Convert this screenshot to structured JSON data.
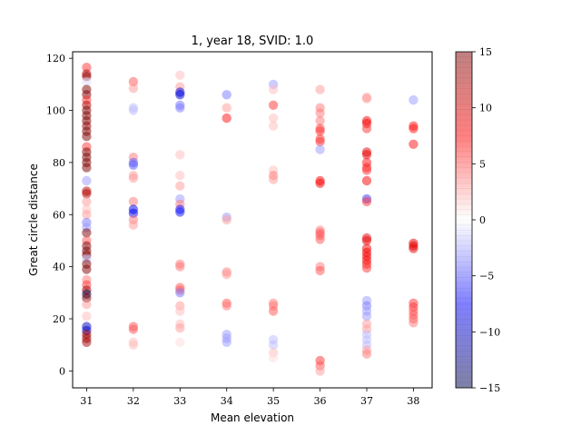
{
  "chart_data": {
    "type": "scatter",
    "title": "1, year 18, SVID: 1.0",
    "xlabel": "Mean elevation",
    "ylabel": "Great circle distance",
    "xlim": [
      30.7,
      38.4
    ],
    "ylim": [
      -6.5,
      122.5
    ],
    "xticks": [
      "31",
      "32",
      "33",
      "34",
      "35",
      "36",
      "37",
      "38"
    ],
    "yticks": [
      "0",
      "20",
      "40",
      "60",
      "80",
      "100",
      "120"
    ],
    "colorbar": {
      "colormap": "seismic",
      "range": [
        -15,
        15
      ],
      "alpha": 0.5,
      "ticks": [
        "15",
        "10",
        "5",
        "0",
        "−5",
        "−10",
        "−15"
      ]
    },
    "grid": false,
    "marker_alpha": 0.5,
    "points": [
      {
        "x": 31,
        "y": 116.5,
        "c": 6
      },
      {
        "x": 31,
        "y": 114,
        "c": 12
      },
      {
        "x": 31,
        "y": 113,
        "c": 14
      },
      {
        "x": 31,
        "y": 111,
        "c": -1
      },
      {
        "x": 31,
        "y": 108,
        "c": 15
      },
      {
        "x": 31,
        "y": 106,
        "c": 15
      },
      {
        "x": 31,
        "y": 104,
        "c": 6
      },
      {
        "x": 31,
        "y": 102,
        "c": 12
      },
      {
        "x": 31,
        "y": 100,
        "c": 15
      },
      {
        "x": 31,
        "y": 98,
        "c": 15
      },
      {
        "x": 31,
        "y": 96,
        "c": 15
      },
      {
        "x": 31,
        "y": 94,
        "c": 14
      },
      {
        "x": 31,
        "y": 92,
        "c": 15
      },
      {
        "x": 31,
        "y": 90,
        "c": 15
      },
      {
        "x": 31,
        "y": 86,
        "c": 6
      },
      {
        "x": 31,
        "y": 84,
        "c": 15
      },
      {
        "x": 31,
        "y": 82,
        "c": 15
      },
      {
        "x": 31,
        "y": 80,
        "c": 15
      },
      {
        "x": 31,
        "y": 78,
        "c": 15
      },
      {
        "x": 31,
        "y": 73,
        "c": -3
      },
      {
        "x": 31,
        "y": 69,
        "c": 12
      },
      {
        "x": 31,
        "y": 68,
        "c": 12
      },
      {
        "x": 31,
        "y": 65,
        "c": 3
      },
      {
        "x": 31,
        "y": 62,
        "c": 2
      },
      {
        "x": 31,
        "y": 60,
        "c": 3
      },
      {
        "x": 31,
        "y": 57,
        "c": -4
      },
      {
        "x": 31,
        "y": 55,
        "c": -3
      },
      {
        "x": 31,
        "y": 53,
        "c": 15
      },
      {
        "x": 31,
        "y": 50,
        "c": 5
      },
      {
        "x": 31,
        "y": 48,
        "c": 15
      },
      {
        "x": 31,
        "y": 46,
        "c": 15
      },
      {
        "x": 31,
        "y": 44.5,
        "c": 15
      },
      {
        "x": 31,
        "y": 43,
        "c": -2
      },
      {
        "x": 31,
        "y": 41,
        "c": 15
      },
      {
        "x": 31,
        "y": 39,
        "c": 15
      },
      {
        "x": 31,
        "y": 35,
        "c": 4
      },
      {
        "x": 31,
        "y": 33,
        "c": 6
      },
      {
        "x": 31,
        "y": 31,
        "c": 13
      },
      {
        "x": 31,
        "y": 29.5,
        "c": -15
      },
      {
        "x": 31,
        "y": 28,
        "c": 15
      },
      {
        "x": 31,
        "y": 25.5,
        "c": 3
      },
      {
        "x": 31,
        "y": 21,
        "c": 2
      },
      {
        "x": 31,
        "y": 17,
        "c": -10
      },
      {
        "x": 31,
        "y": 15.5,
        "c": -10
      },
      {
        "x": 31,
        "y": 14,
        "c": 13
      },
      {
        "x": 31,
        "y": 12.5,
        "c": 13
      },
      {
        "x": 31,
        "y": 11,
        "c": 13
      },
      {
        "x": 32,
        "y": 111,
        "c": 5
      },
      {
        "x": 32,
        "y": 108.5,
        "c": 3
      },
      {
        "x": 32,
        "y": 101,
        "c": -2
      },
      {
        "x": 32,
        "y": 100,
        "c": -2
      },
      {
        "x": 32,
        "y": 82,
        "c": 4
      },
      {
        "x": 32,
        "y": 80,
        "c": -5
      },
      {
        "x": 32,
        "y": 79,
        "c": -5
      },
      {
        "x": 32,
        "y": 75,
        "c": 3
      },
      {
        "x": 32,
        "y": 74,
        "c": 3
      },
      {
        "x": 32,
        "y": 65,
        "c": 4
      },
      {
        "x": 32,
        "y": 62,
        "c": -8
      },
      {
        "x": 32,
        "y": 60.5,
        "c": -8
      },
      {
        "x": 32,
        "y": 58,
        "c": 4
      },
      {
        "x": 32,
        "y": 56,
        "c": 3
      },
      {
        "x": 32,
        "y": 17,
        "c": 5
      },
      {
        "x": 32,
        "y": 16,
        "c": 5
      },
      {
        "x": 32,
        "y": 11,
        "c": 2
      },
      {
        "x": 32,
        "y": 10,
        "c": 2
      },
      {
        "x": 33,
        "y": 113.5,
        "c": 2
      },
      {
        "x": 33,
        "y": 109,
        "c": 3
      },
      {
        "x": 33,
        "y": 107,
        "c": -9
      },
      {
        "x": 33,
        "y": 106,
        "c": -9
      },
      {
        "x": 33,
        "y": 102,
        "c": -4
      },
      {
        "x": 33,
        "y": 101,
        "c": -4
      },
      {
        "x": 33,
        "y": 83,
        "c": 2
      },
      {
        "x": 33,
        "y": 75,
        "c": 2
      },
      {
        "x": 33,
        "y": 71,
        "c": 3
      },
      {
        "x": 33,
        "y": 66,
        "c": -3
      },
      {
        "x": 33,
        "y": 64,
        "c": 4
      },
      {
        "x": 33,
        "y": 62,
        "c": -7
      },
      {
        "x": 33,
        "y": 61,
        "c": -7
      },
      {
        "x": 33,
        "y": 41,
        "c": 4
      },
      {
        "x": 33,
        "y": 40,
        "c": 4
      },
      {
        "x": 33,
        "y": 32,
        "c": 5
      },
      {
        "x": 33,
        "y": 31,
        "c": 5
      },
      {
        "x": 33,
        "y": 30,
        "c": -4
      },
      {
        "x": 33,
        "y": 25,
        "c": 3
      },
      {
        "x": 33,
        "y": 23,
        "c": 2
      },
      {
        "x": 33,
        "y": 18,
        "c": 2
      },
      {
        "x": 33,
        "y": 16.5,
        "c": 3
      },
      {
        "x": 33,
        "y": 11,
        "c": 1
      },
      {
        "x": 34,
        "y": 106,
        "c": -4
      },
      {
        "x": 34,
        "y": 101,
        "c": 3
      },
      {
        "x": 34,
        "y": 97,
        "c": 7
      },
      {
        "x": 34,
        "y": 59,
        "c": -3
      },
      {
        "x": 34,
        "y": 58,
        "c": 3
      },
      {
        "x": 34,
        "y": 38,
        "c": 4
      },
      {
        "x": 34,
        "y": 37,
        "c": 3
      },
      {
        "x": 34,
        "y": 26,
        "c": 5
      },
      {
        "x": 34,
        "y": 25,
        "c": 4
      },
      {
        "x": 34,
        "y": 14,
        "c": -3
      },
      {
        "x": 34,
        "y": 12.5,
        "c": -3
      },
      {
        "x": 34,
        "y": 11,
        "c": -3
      },
      {
        "x": 35,
        "y": 110,
        "c": -3
      },
      {
        "x": 35,
        "y": 108,
        "c": 2
      },
      {
        "x": 35,
        "y": 102,
        "c": 6
      },
      {
        "x": 35,
        "y": 97,
        "c": 2
      },
      {
        "x": 35,
        "y": 94,
        "c": 2
      },
      {
        "x": 35,
        "y": 77,
        "c": 2
      },
      {
        "x": 35,
        "y": 75,
        "c": 4
      },
      {
        "x": 35,
        "y": 73.5,
        "c": 3
      },
      {
        "x": 35,
        "y": 26,
        "c": 4
      },
      {
        "x": 35,
        "y": 25,
        "c": 4
      },
      {
        "x": 35,
        "y": 23,
        "c": 5
      },
      {
        "x": 35,
        "y": 12,
        "c": -2
      },
      {
        "x": 35,
        "y": 10,
        "c": -2
      },
      {
        "x": 35,
        "y": 7,
        "c": 2
      },
      {
        "x": 35,
        "y": 5,
        "c": 1
      },
      {
        "x": 36,
        "y": 108,
        "c": 3
      },
      {
        "x": 36,
        "y": 101,
        "c": 4
      },
      {
        "x": 36,
        "y": 99,
        "c": 4
      },
      {
        "x": 36,
        "y": 96,
        "c": 4
      },
      {
        "x": 36,
        "y": 93,
        "c": 6
      },
      {
        "x": 36,
        "y": 92,
        "c": 6
      },
      {
        "x": 36,
        "y": 89,
        "c": 6
      },
      {
        "x": 36,
        "y": 88,
        "c": 6
      },
      {
        "x": 36,
        "y": 85,
        "c": -3
      },
      {
        "x": 36,
        "y": 73,
        "c": 8
      },
      {
        "x": 36,
        "y": 72,
        "c": 8
      },
      {
        "x": 36,
        "y": 54,
        "c": 4
      },
      {
        "x": 36,
        "y": 53,
        "c": 5
      },
      {
        "x": 36,
        "y": 52,
        "c": 5
      },
      {
        "x": 36,
        "y": 50.5,
        "c": 5
      },
      {
        "x": 36,
        "y": 40,
        "c": 4
      },
      {
        "x": 36,
        "y": 38.5,
        "c": 5
      },
      {
        "x": 36,
        "y": 4,
        "c": 6
      },
      {
        "x": 36,
        "y": 2,
        "c": 5
      },
      {
        "x": 36,
        "y": 0,
        "c": 3
      },
      {
        "x": 37,
        "y": 105,
        "c": 3
      },
      {
        "x": 37,
        "y": 104.5,
        "c": 3
      },
      {
        "x": 37,
        "y": 96,
        "c": 8
      },
      {
        "x": 37,
        "y": 95,
        "c": 8
      },
      {
        "x": 37,
        "y": 93,
        "c": 6
      },
      {
        "x": 37,
        "y": 84,
        "c": 9
      },
      {
        "x": 37,
        "y": 83,
        "c": 9
      },
      {
        "x": 37,
        "y": 80,
        "c": 7
      },
      {
        "x": 37,
        "y": 78,
        "c": 7
      },
      {
        "x": 37,
        "y": 77,
        "c": 6
      },
      {
        "x": 37,
        "y": 73,
        "c": 8
      },
      {
        "x": 37,
        "y": 66,
        "c": -6
      },
      {
        "x": 37,
        "y": 65,
        "c": 6
      },
      {
        "x": 37,
        "y": 51,
        "c": 9
      },
      {
        "x": 37,
        "y": 50,
        "c": 9
      },
      {
        "x": 37,
        "y": 47,
        "c": 8
      },
      {
        "x": 37,
        "y": 45.5,
        "c": 8
      },
      {
        "x": 37,
        "y": 44,
        "c": 8
      },
      {
        "x": 37,
        "y": 42.5,
        "c": 8
      },
      {
        "x": 37,
        "y": 41,
        "c": 7
      },
      {
        "x": 37,
        "y": 39.5,
        "c": 6
      },
      {
        "x": 37,
        "y": 27,
        "c": -3
      },
      {
        "x": 37,
        "y": 25,
        "c": -4
      },
      {
        "x": 37,
        "y": 23,
        "c": -3
      },
      {
        "x": 37,
        "y": 21,
        "c": -3
      },
      {
        "x": 37,
        "y": 18,
        "c": 3
      },
      {
        "x": 37,
        "y": 16,
        "c": 3
      },
      {
        "x": 37,
        "y": 14,
        "c": -2
      },
      {
        "x": 37,
        "y": 12,
        "c": -2
      },
      {
        "x": 37,
        "y": 10,
        "c": -2
      },
      {
        "x": 37,
        "y": 8,
        "c": 3
      },
      {
        "x": 37,
        "y": 6.5,
        "c": 4
      },
      {
        "x": 38,
        "y": 104,
        "c": -3
      },
      {
        "x": 38,
        "y": 94,
        "c": 7
      },
      {
        "x": 38,
        "y": 93,
        "c": 7
      },
      {
        "x": 38,
        "y": 87,
        "c": 7
      },
      {
        "x": 38,
        "y": 49,
        "c": 9
      },
      {
        "x": 38,
        "y": 48,
        "c": 9
      },
      {
        "x": 38,
        "y": 47,
        "c": 9
      },
      {
        "x": 38,
        "y": 26,
        "c": 6
      },
      {
        "x": 38,
        "y": 24.5,
        "c": 6
      },
      {
        "x": 38,
        "y": 23,
        "c": 5
      },
      {
        "x": 38,
        "y": 21.5,
        "c": 5
      },
      {
        "x": 38,
        "y": 20,
        "c": 5
      },
      {
        "x": 38,
        "y": 18.5,
        "c": 4
      }
    ]
  }
}
